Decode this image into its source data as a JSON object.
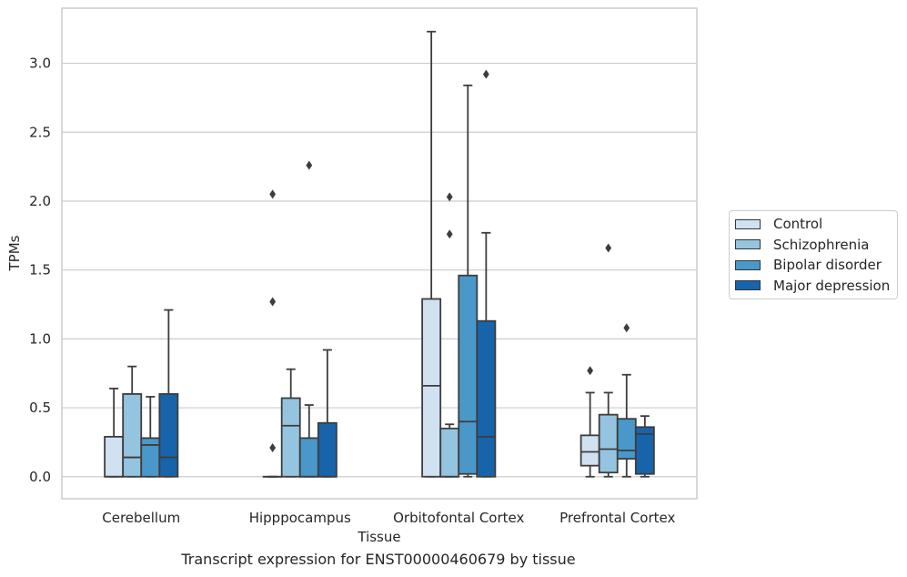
{
  "chart_data": {
    "type": "boxplot",
    "xlabel": "Tissue",
    "ylabel": "TPMs",
    "caption": "Transcript expression for ENST00000460679 by tissue",
    "ylim": [
      -0.16,
      3.4
    ],
    "yticks": [
      0.0,
      0.5,
      1.0,
      1.5,
      2.0,
      2.5,
      3.0
    ],
    "ytick_labels": [
      "0.0",
      "0.5",
      "1.0",
      "1.5",
      "2.0",
      "2.5",
      "3.0"
    ],
    "grid": "horizontal",
    "legend_position": "right",
    "categories": [
      "Cerebellum",
      "Hipppocampus",
      "Orbitofontal Cortex",
      "Prefrontal Cortex"
    ],
    "series": [
      {
        "name": "Control",
        "color": "#d0e1f2",
        "boxes": [
          {
            "whisker_low": 0,
            "q1": 0,
            "median": 0,
            "q3": 0.29,
            "whisker_high": 0.64,
            "outliers": []
          },
          {
            "whisker_low": 0,
            "q1": 0,
            "median": 0,
            "q3": 0,
            "whisker_high": 0,
            "outliers": [
              0.21,
              1.27,
              2.05
            ]
          },
          {
            "whisker_low": 0,
            "q1": 0,
            "median": 0.66,
            "q3": 1.29,
            "whisker_high": 3.23,
            "outliers": []
          },
          {
            "whisker_low": 0,
            "q1": 0.08,
            "median": 0.18,
            "q3": 0.3,
            "whisker_high": 0.61,
            "outliers": [
              0.77
            ]
          }
        ]
      },
      {
        "name": "Schizophrenia",
        "color": "#94c4df",
        "boxes": [
          {
            "whisker_low": 0,
            "q1": 0,
            "median": 0.14,
            "q3": 0.6,
            "whisker_high": 0.8,
            "outliers": []
          },
          {
            "whisker_low": 0,
            "q1": 0,
            "median": 0.37,
            "q3": 0.57,
            "whisker_high": 0.78,
            "outliers": []
          },
          {
            "whisker_low": 0,
            "q1": 0,
            "median": 0,
            "q3": 0.35,
            "whisker_high": 0.38,
            "outliers": [
              1.76,
              2.03
            ]
          },
          {
            "whisker_low": 0,
            "q1": 0.03,
            "median": 0.2,
            "q3": 0.45,
            "whisker_high": 0.61,
            "outliers": [
              1.66
            ]
          }
        ]
      },
      {
        "name": "Bipolar disorder",
        "color": "#4a98c9",
        "boxes": [
          {
            "whisker_low": 0,
            "q1": 0,
            "median": 0.23,
            "q3": 0.28,
            "whisker_high": 0.58,
            "outliers": []
          },
          {
            "whisker_low": 0,
            "q1": 0,
            "median": 0,
            "q3": 0.28,
            "whisker_high": 0.52,
            "outliers": [
              2.26
            ]
          },
          {
            "whisker_low": 0,
            "q1": 0.02,
            "median": 0.4,
            "q3": 1.46,
            "whisker_high": 2.84,
            "outliers": []
          },
          {
            "whisker_low": 0,
            "q1": 0.13,
            "median": 0.19,
            "q3": 0.42,
            "whisker_high": 0.74,
            "outliers": [
              1.08
            ]
          }
        ]
      },
      {
        "name": "Major depression",
        "color": "#1764ab",
        "boxes": [
          {
            "whisker_low": 0,
            "q1": 0,
            "median": 0.14,
            "q3": 0.6,
            "whisker_high": 1.21,
            "outliers": []
          },
          {
            "whisker_low": 0,
            "q1": 0,
            "median": 0,
            "q3": 0.39,
            "whisker_high": 0.92,
            "outliers": []
          },
          {
            "whisker_low": 0,
            "q1": 0,
            "median": 0.29,
            "q3": 1.13,
            "whisker_high": 1.77,
            "outliers": [
              2.92
            ]
          },
          {
            "whisker_low": 0,
            "q1": 0.02,
            "median": 0.31,
            "q3": 0.36,
            "whisker_high": 0.44,
            "outliers": []
          }
        ]
      }
    ]
  }
}
